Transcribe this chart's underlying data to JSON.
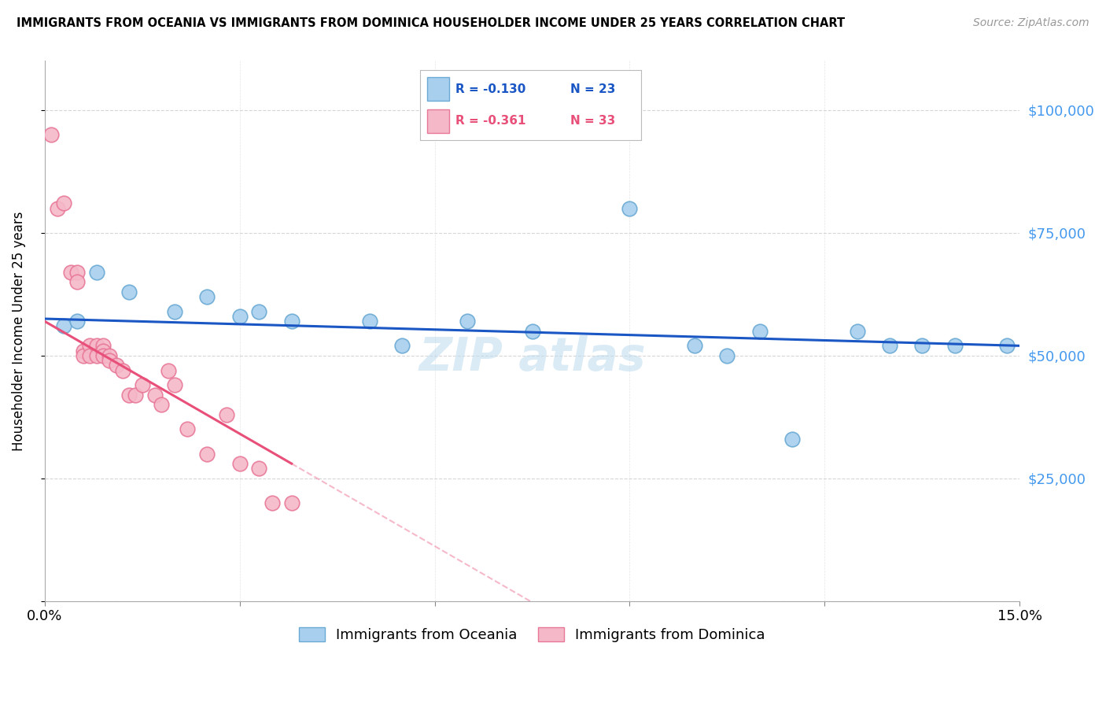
{
  "title": "IMMIGRANTS FROM OCEANIA VS IMMIGRANTS FROM DOMINICA HOUSEHOLDER INCOME UNDER 25 YEARS CORRELATION CHART",
  "source": "Source: ZipAtlas.com",
  "ylabel": "Householder Income Under 25 years",
  "xlim": [
    0.0,
    0.15
  ],
  "ylim": [
    0,
    110000
  ],
  "yticks": [
    0,
    25000,
    50000,
    75000,
    100000
  ],
  "ytick_labels": [
    "",
    "$25,000",
    "$50,000",
    "$75,000",
    "$100,000"
  ],
  "xticks": [
    0.0,
    0.03,
    0.06,
    0.09,
    0.12,
    0.15
  ],
  "xtick_labels": [
    "0.0%",
    "",
    "",
    "",
    "",
    "15.0%"
  ],
  "blue_color": "#A8CFEE",
  "pink_color": "#F5B8C8",
  "blue_edge": "#6AAAD4",
  "pink_edge": "#E87898",
  "trend_blue": "#1A56C4",
  "trend_pink": "#E8507A",
  "axis_label_color": "#4499EE",
  "legend_R_blue": "R = -0.130",
  "legend_N_blue": "N = 23",
  "legend_R_pink": "R = -0.361",
  "legend_N_pink": "N = 33",
  "legend_label_blue": "Immigrants from Oceania",
  "legend_label_pink": "Immigrants from Dominica",
  "blue_x": [
    0.003,
    0.005,
    0.008,
    0.013,
    0.02,
    0.025,
    0.03,
    0.033,
    0.038,
    0.05,
    0.055,
    0.065,
    0.075,
    0.09,
    0.1,
    0.105,
    0.11,
    0.115,
    0.125,
    0.13,
    0.135,
    0.14,
    0.148
  ],
  "blue_y": [
    56000,
    57000,
    67000,
    63000,
    59000,
    62000,
    58000,
    59000,
    57000,
    57000,
    52000,
    57000,
    55000,
    80000,
    52000,
    50000,
    55000,
    33000,
    55000,
    52000,
    52000,
    52000,
    52000
  ],
  "pink_x": [
    0.001,
    0.002,
    0.003,
    0.004,
    0.005,
    0.005,
    0.006,
    0.006,
    0.007,
    0.007,
    0.008,
    0.008,
    0.009,
    0.009,
    0.009,
    0.01,
    0.01,
    0.011,
    0.012,
    0.013,
    0.014,
    0.015,
    0.017,
    0.018,
    0.019,
    0.02,
    0.022,
    0.025,
    0.028,
    0.03,
    0.033,
    0.035,
    0.038
  ],
  "pink_y": [
    95000,
    80000,
    81000,
    67000,
    67000,
    65000,
    51000,
    50000,
    52000,
    50000,
    52000,
    50000,
    52000,
    51000,
    50000,
    50000,
    49000,
    48000,
    47000,
    42000,
    42000,
    44000,
    42000,
    40000,
    47000,
    44000,
    35000,
    30000,
    38000,
    28000,
    27000,
    20000,
    20000
  ]
}
